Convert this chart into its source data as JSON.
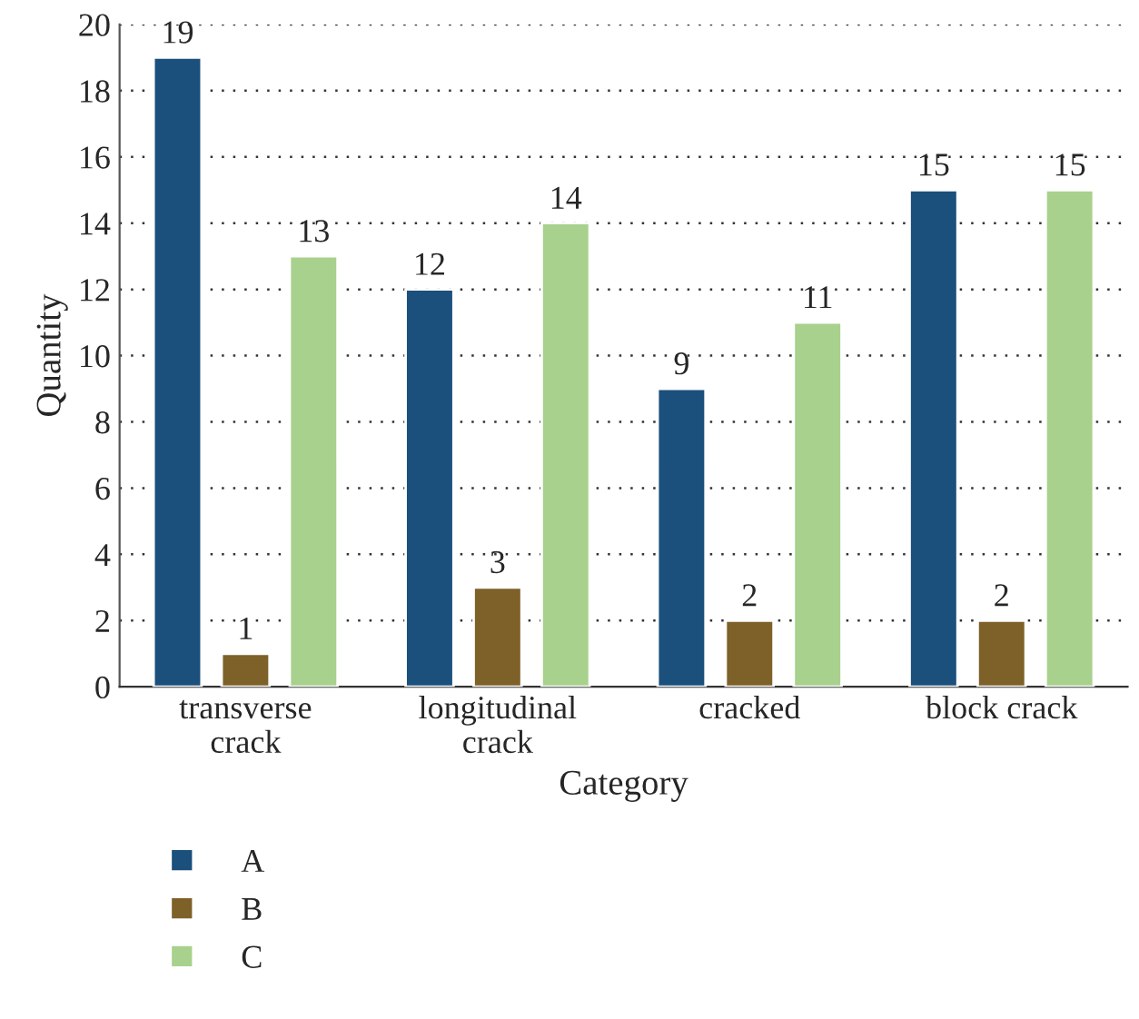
{
  "chart_data": {
    "type": "bar",
    "xlabel": "Category",
    "ylabel": "Quantity",
    "categories": [
      "transverse\ncrack",
      "longitudinal\ncrack",
      "cracked",
      "block crack"
    ],
    "series": [
      {
        "name": "A",
        "color": "#1b4f7c",
        "values": [
          19,
          12,
          9,
          15
        ]
      },
      {
        "name": "B",
        "color": "#7e6029",
        "values": [
          1,
          3,
          2,
          2
        ]
      },
      {
        "name": "C",
        "color": "#a8d18d",
        "values": [
          13,
          14,
          11,
          15
        ]
      }
    ],
    "ylim": [
      0,
      20
    ],
    "yticks": [
      0,
      2,
      4,
      6,
      8,
      10,
      12,
      14,
      16,
      18,
      20
    ],
    "grid": "y",
    "line_style": "dotted",
    "legend": "bottom",
    "data_labels": true
  }
}
